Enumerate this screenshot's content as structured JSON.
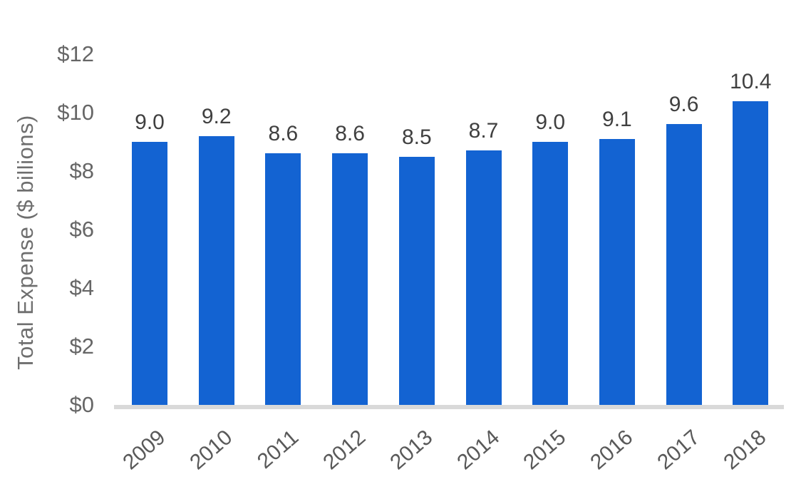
{
  "chart_data": {
    "type": "bar",
    "title": "",
    "xlabel": "",
    "ylabel": "Total Expense ($ billions)",
    "categories": [
      "2009",
      "2010",
      "2011",
      "2012",
      "2013",
      "2014",
      "2015",
      "2016",
      "2017",
      "2018"
    ],
    "values": [
      9.0,
      9.2,
      8.6,
      8.6,
      8.5,
      8.7,
      9.0,
      9.1,
      9.6,
      10.4
    ],
    "bar_labels": [
      "9.0",
      "9.2",
      "8.6",
      "8.6",
      "8.5",
      "8.7",
      "9.0",
      "9.1",
      "9.6",
      "10.4"
    ],
    "ylim": [
      0,
      12
    ],
    "yticks": [
      {
        "label": "$12",
        "value": 12
      },
      {
        "label": "$10",
        "value": 10
      },
      {
        "label": "$8",
        "value": 8
      },
      {
        "label": "$6",
        "value": 6
      },
      {
        "label": "$4",
        "value": 4
      },
      {
        "label": "$2",
        "value": 2
      },
      {
        "label": "$0",
        "value": 0
      }
    ],
    "grid": false,
    "legend_position": "none",
    "colors": {
      "bar": "#1363d2",
      "axis_line": "#d9d9d9",
      "tick_label": "#666666",
      "value_label": "#404040",
      "category_label": "#595959",
      "axis_title": "#6e6e6e"
    }
  }
}
